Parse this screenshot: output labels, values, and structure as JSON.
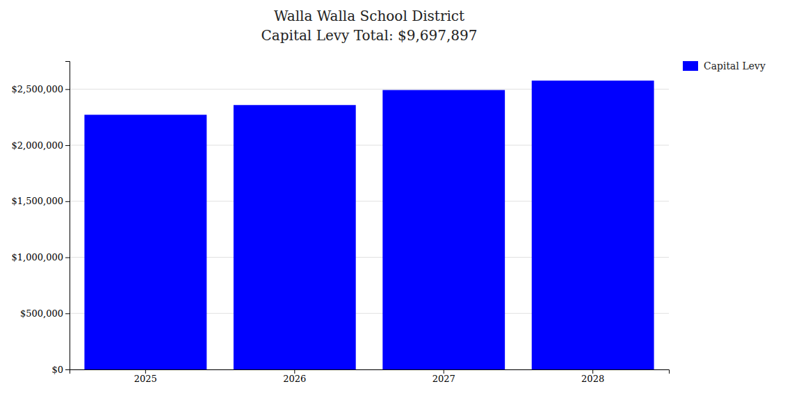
{
  "chart_data": {
    "type": "bar",
    "title": "Walla Walla School District",
    "subtitle": "Capital Levy Total: $9,697,897",
    "categories": [
      "2025",
      "2026",
      "2027",
      "2028"
    ],
    "series": [
      {
        "name": "Capital Levy",
        "color": "#0000ff",
        "values": [
          2271474,
          2358151,
          2492066,
          2576206
        ]
      }
    ],
    "ylim": [
      0,
      2750000
    ],
    "yticks": [
      {
        "value": 0,
        "label": "$0"
      },
      {
        "value": 500000,
        "label": "$500,000"
      },
      {
        "value": 1000000,
        "label": "$1,000,000"
      },
      {
        "value": 1500000,
        "label": "$1,500,000"
      },
      {
        "value": 2000000,
        "label": "$2,000,000"
      },
      {
        "value": 2500000,
        "label": "$2,500,000"
      }
    ],
    "grid": true,
    "legend": "right"
  }
}
